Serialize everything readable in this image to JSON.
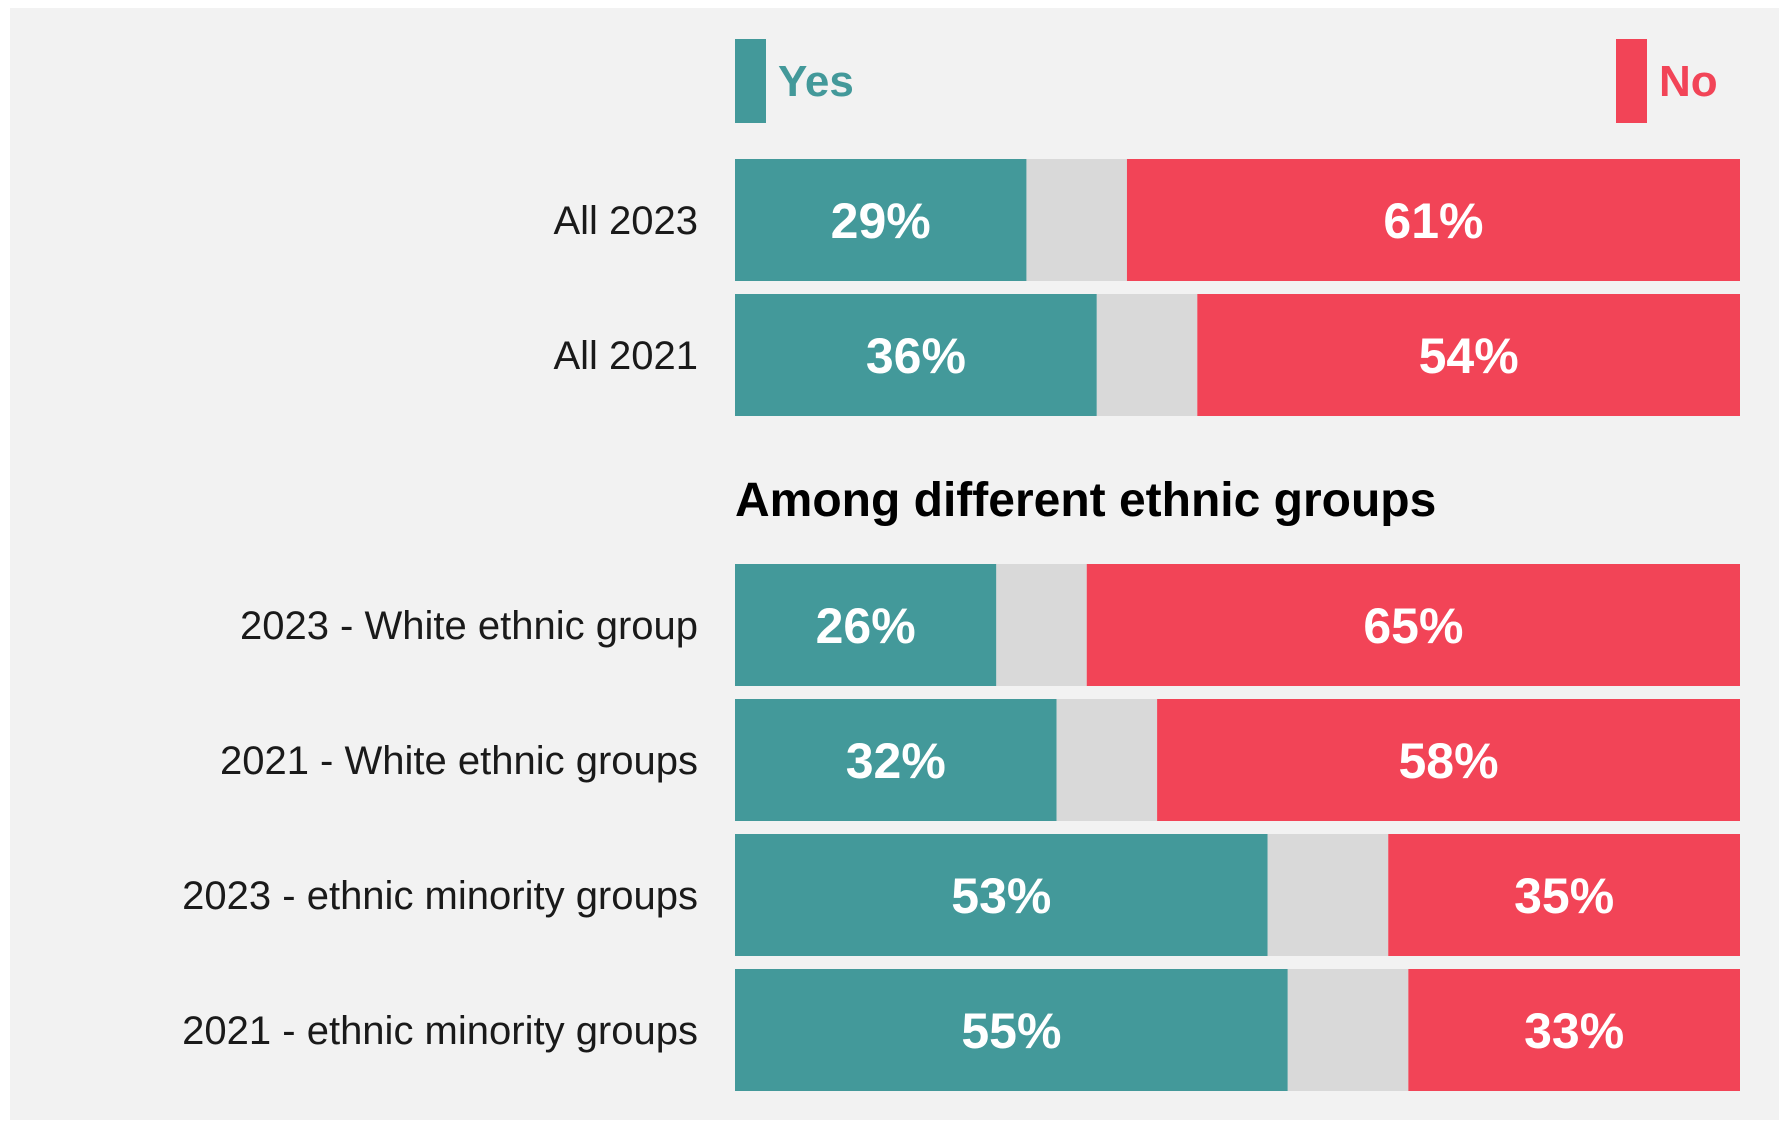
{
  "colors": {
    "yes": "#43999a",
    "no": "#f24457",
    "neither": "#d9d9d9",
    "background": "#f2f2f2"
  },
  "legend": {
    "yes": "Yes",
    "no": "No"
  },
  "section_title": "Among different ethnic groups",
  "chart_data": {
    "type": "bar",
    "orientation": "horizontal",
    "stacked": true,
    "xlim": [
      0,
      100
    ],
    "categories": [
      "All 2023",
      "All 2021",
      "2023 - White ethnic group",
      "2021 - White ethnic groups",
      "2023 - ethnic minority groups",
      "2021 - ethnic minority groups"
    ],
    "series": [
      {
        "name": "Yes",
        "values": [
          29,
          36,
          26,
          32,
          53,
          55
        ]
      },
      {
        "name": "",
        "values": [
          10,
          10,
          9,
          10,
          12,
          12
        ]
      },
      {
        "name": "No",
        "values": [
          61,
          54,
          65,
          58,
          35,
          33
        ]
      }
    ],
    "data_labels": {
      "yes": [
        "29%",
        "36%",
        "26%",
        "32%",
        "53%",
        "55%"
      ],
      "no": [
        "61%",
        "54%",
        "65%",
        "58%",
        "35%",
        "33%"
      ]
    },
    "legend_position": "top",
    "grid": false
  }
}
